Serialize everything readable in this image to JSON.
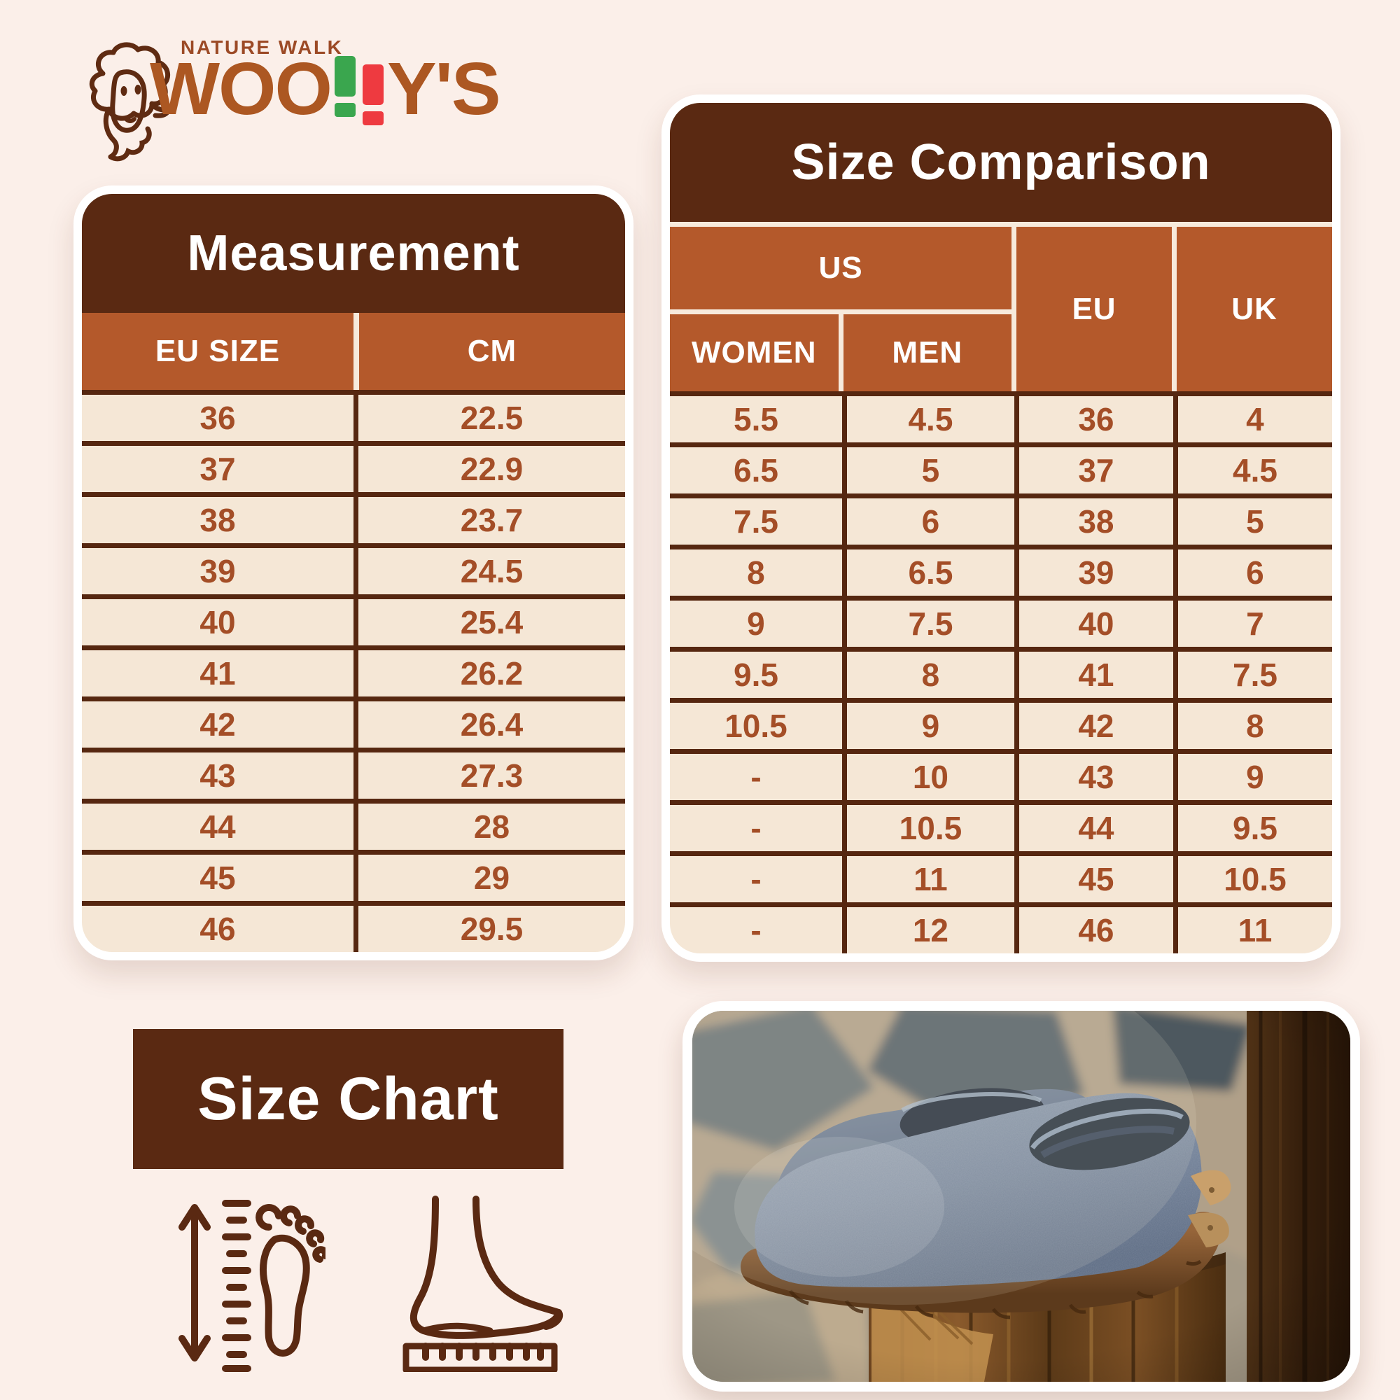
{
  "colors": {
    "page_bg": "#FBEFE9",
    "dark_brown": "#5A2912",
    "orange_header": "#B4592B",
    "cream_cell": "#F5E7D6",
    "rust_text": "#A44E27",
    "logo_brown": "#AC5722",
    "logo_green": "#3AA64E",
    "logo_red": "#EE3A40"
  },
  "logo": {
    "tagline": "NATURE WALK",
    "brand_prefix": "WOO",
    "brand_suffix": "Y'S"
  },
  "measurement_table": {
    "title": "Measurement",
    "columns": [
      "EU SIZE",
      "CM"
    ],
    "rows": [
      [
        "36",
        "22.5"
      ],
      [
        "37",
        "22.9"
      ],
      [
        "38",
        "23.7"
      ],
      [
        "39",
        "24.5"
      ],
      [
        "40",
        "25.4"
      ],
      [
        "41",
        "26.2"
      ],
      [
        "42",
        "26.4"
      ],
      [
        "43",
        "27.3"
      ],
      [
        "44",
        "28"
      ],
      [
        "45",
        "29"
      ],
      [
        "46",
        "29.5"
      ]
    ]
  },
  "comparison_table": {
    "title": "Size Comparison",
    "us_group_label": "US",
    "columns": [
      "WOMEN",
      "MEN",
      "EU",
      "UK"
    ],
    "rows": [
      [
        "5.5",
        "4.5",
        "36",
        "4"
      ],
      [
        "6.5",
        "5",
        "37",
        "4.5"
      ],
      [
        "7.5",
        "6",
        "38",
        "5"
      ],
      [
        "8",
        "6.5",
        "39",
        "6"
      ],
      [
        "9",
        "7.5",
        "40",
        "7"
      ],
      [
        "9.5",
        "8",
        "41",
        "7.5"
      ],
      [
        "10.5",
        "9",
        "42",
        "8"
      ],
      [
        "-",
        "10",
        "43",
        "9"
      ],
      [
        "-",
        "10.5",
        "44",
        "9.5"
      ],
      [
        "-",
        "11",
        "45",
        "10.5"
      ],
      [
        "-",
        "12",
        "46",
        "11"
      ]
    ]
  },
  "badge": {
    "label": "Size Chart"
  },
  "icons": {
    "sheep": "sheep-logo-icon",
    "foot_length": "foot-length-measure-icon",
    "foot_ruler": "foot-on-ruler-icon"
  }
}
